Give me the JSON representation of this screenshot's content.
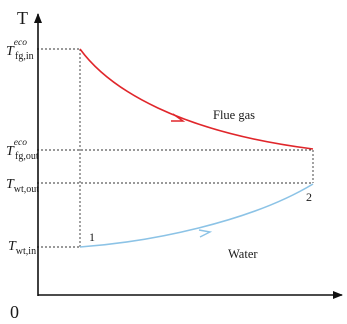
{
  "axes": {
    "y_title": "T",
    "origin": "0"
  },
  "y_labels": {
    "fg_in": {
      "main": "T",
      "sub": "fg,in",
      "sup": "eco"
    },
    "fg_out": {
      "main": "T",
      "sub": "fg,out",
      "sup": "eco"
    },
    "wt_out": {
      "main": "T",
      "sub": "wt,out"
    },
    "wt_in": {
      "main": "T",
      "sub": "wt,in"
    }
  },
  "curves": {
    "flue_gas": {
      "label": "Flue gas",
      "color": "#e0262b"
    },
    "water": {
      "label": "Water",
      "color": "#8cc3e6"
    }
  },
  "points": {
    "p1": "1",
    "p2": "2"
  }
}
